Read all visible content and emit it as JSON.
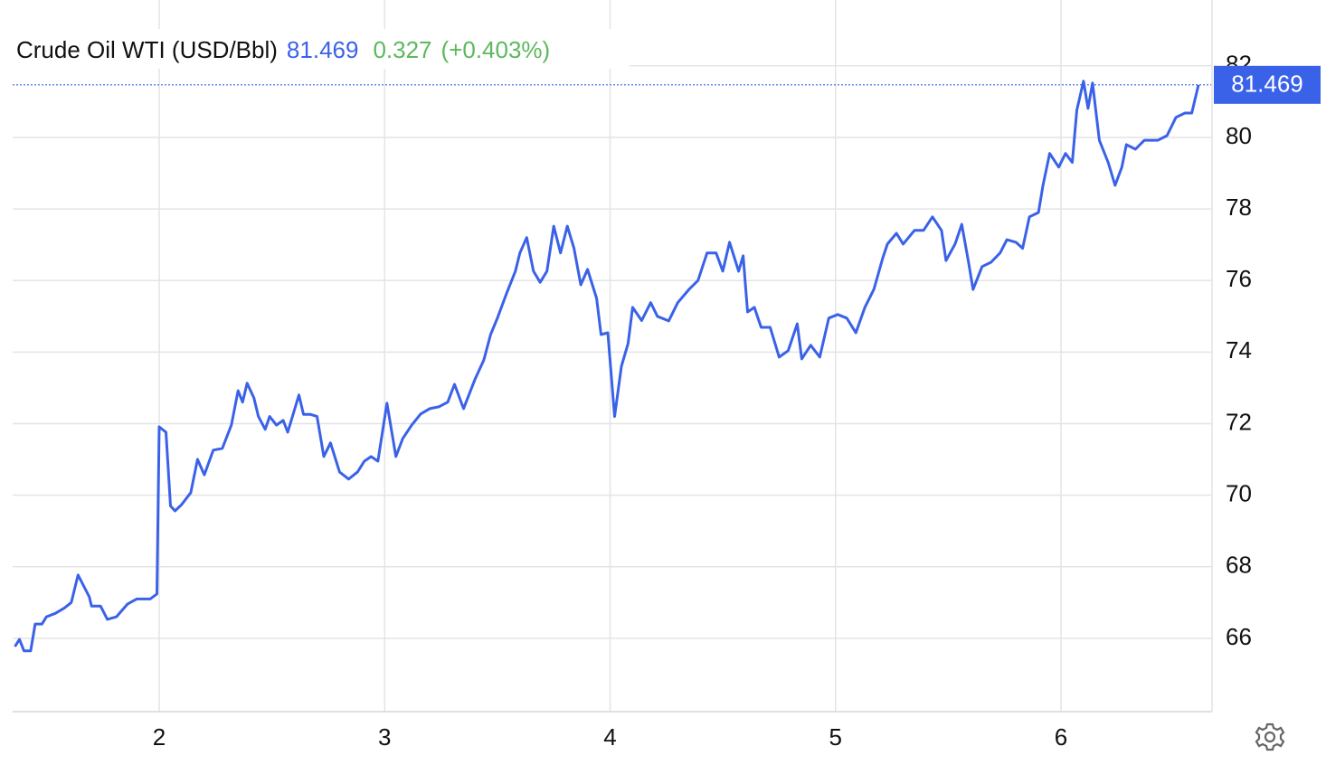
{
  "chart_data": {
    "type": "line",
    "title": "Crude Oil WTI (USD/Bbl)",
    "price": 81.469,
    "change": 0.327,
    "change_pct": "(+0.403%)",
    "xlim": [
      1.35,
      6.67
    ],
    "xticks": [
      2,
      3,
      4,
      5,
      6
    ],
    "ylim": [
      63.95,
      83.84
    ],
    "yticks": [
      66,
      68,
      70,
      72,
      74,
      76,
      78,
      80,
      82
    ],
    "grid": true,
    "series": [
      {
        "color": "#3a62e8",
        "x": [
          1.36,
          1.38,
          1.4,
          1.43,
          1.45,
          1.48,
          1.5,
          1.54,
          1.58,
          1.61,
          1.64,
          1.69,
          1.7,
          1.74,
          1.77,
          1.81,
          1.86,
          1.9,
          1.96,
          1.99,
          2.0,
          2.03,
          2.05,
          2.07,
          2.1,
          2.14,
          2.17,
          2.2,
          2.24,
          2.28,
          2.32,
          2.35,
          2.37,
          2.39,
          2.42,
          2.44,
          2.47,
          2.49,
          2.52,
          2.55,
          2.57,
          2.62,
          2.64,
          2.67,
          2.7,
          2.73,
          2.76,
          2.8,
          2.84,
          2.88,
          2.91,
          2.94,
          2.97,
          3.01,
          3.05,
          3.08,
          3.12,
          3.16,
          3.2,
          3.24,
          3.28,
          3.31,
          3.35,
          3.4,
          3.44,
          3.47,
          3.5,
          3.54,
          3.58,
          3.6,
          3.63,
          3.66,
          3.69,
          3.72,
          3.75,
          3.78,
          3.81,
          3.84,
          3.87,
          3.9,
          3.94,
          3.96,
          3.99,
          4.02,
          4.05,
          4.08,
          4.1,
          4.14,
          4.18,
          4.21,
          4.26,
          4.3,
          4.35,
          4.39,
          4.43,
          4.47,
          4.5,
          4.53,
          4.57,
          4.59,
          4.61,
          4.64,
          4.67,
          4.71,
          4.75,
          4.79,
          4.83,
          4.85,
          4.89,
          4.93,
          4.97,
          5.01,
          5.05,
          5.09,
          5.13,
          5.17,
          5.21,
          5.23,
          5.27,
          5.3,
          5.35,
          5.39,
          5.43,
          5.47,
          5.49,
          5.53,
          5.56,
          5.59,
          5.61,
          5.65,
          5.69,
          5.73,
          5.76,
          5.8,
          5.83,
          5.86,
          5.9,
          5.92,
          5.95,
          5.99,
          6.02,
          6.05,
          6.07,
          6.1,
          6.12,
          6.14,
          6.17,
          6.21,
          6.24,
          6.27,
          6.29,
          6.33,
          6.37,
          6.43,
          6.47,
          6.51,
          6.55,
          6.58,
          6.61
        ],
        "values": [
          65.77,
          65.97,
          65.65,
          65.65,
          66.4,
          66.4,
          66.6,
          66.7,
          66.85,
          67.0,
          67.77,
          67.16,
          66.9,
          66.9,
          66.53,
          66.6,
          66.96,
          67.1,
          67.1,
          67.24,
          71.91,
          71.76,
          69.7,
          69.56,
          69.74,
          70.07,
          71.0,
          70.57,
          71.26,
          71.31,
          71.96,
          72.92,
          72.6,
          73.13,
          72.72,
          72.2,
          71.84,
          72.2,
          71.96,
          72.09,
          71.76,
          72.8,
          72.26,
          72.26,
          72.2,
          71.08,
          71.46,
          70.65,
          70.45,
          70.65,
          70.95,
          71.08,
          70.95,
          72.57,
          71.08,
          71.58,
          71.96,
          72.27,
          72.42,
          72.47,
          72.6,
          73.1,
          72.42,
          73.23,
          73.78,
          74.49,
          74.95,
          75.63,
          76.26,
          76.77,
          77.2,
          76.26,
          75.95,
          76.26,
          77.52,
          76.77,
          77.52,
          76.9,
          75.88,
          76.31,
          75.5,
          74.49,
          74.54,
          72.2,
          73.6,
          74.24,
          75.25,
          74.88,
          75.38,
          75.0,
          74.87,
          75.38,
          75.75,
          76.0,
          76.77,
          76.77,
          76.26,
          77.07,
          76.26,
          76.69,
          75.12,
          75.25,
          74.69,
          74.69,
          73.86,
          74.04,
          74.79,
          73.81,
          74.19,
          73.86,
          74.95,
          75.05,
          74.95,
          74.54,
          75.25,
          75.75,
          76.64,
          77.02,
          77.32,
          77.02,
          77.4,
          77.4,
          77.78,
          77.4,
          76.56,
          77.02,
          77.57,
          76.51,
          75.75,
          76.39,
          76.51,
          76.77,
          77.14,
          77.07,
          76.9,
          77.78,
          77.9,
          78.66,
          79.55,
          79.17,
          79.55,
          79.3,
          80.76,
          81.57,
          80.81,
          81.52,
          79.92,
          79.29,
          78.66,
          79.17,
          79.8,
          79.67,
          79.92,
          79.92,
          80.05,
          80.56,
          80.68,
          80.68,
          81.469
        ]
      }
    ]
  }
}
